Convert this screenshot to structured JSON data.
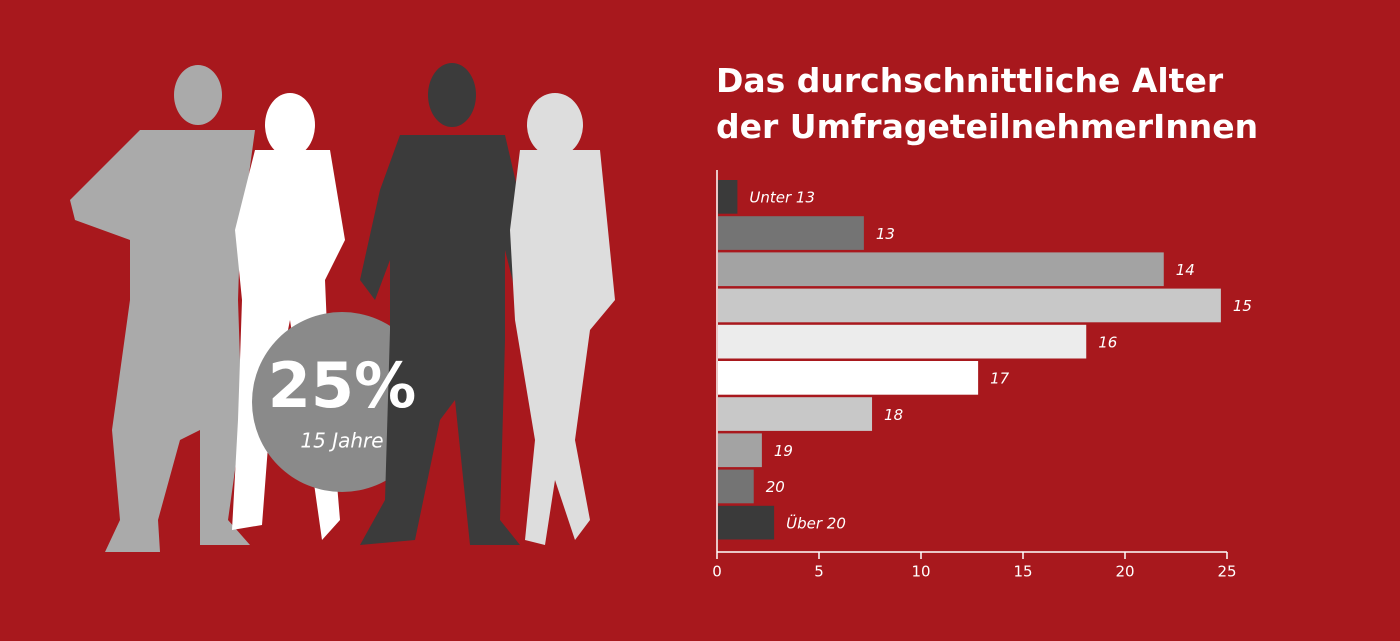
{
  "chart_data": {
    "type": "barh",
    "title": [
      "Das durchschnittliche Alter",
      "der UmfrageteilnehmerInnen"
    ],
    "annotation": {
      "text": "25%",
      "label": "15 Jahre"
    },
    "categories": [
      "Unter 13",
      "13",
      "14",
      "15",
      "16",
      "17",
      "18",
      "19",
      "20",
      "Über 20"
    ],
    "values": [
      1.0,
      7.2,
      21.9,
      24.7,
      18.1,
      12.8,
      7.6,
      2.2,
      1.8,
      2.8
    ],
    "colors": [
      "#3a3a3a",
      "#747474",
      "#a3a3a3",
      "#c8c8c8",
      "#ececec",
      "#ffffff",
      "#c8c8c8",
      "#a3a3a3",
      "#747474",
      "#3a3a3a"
    ],
    "xlim": [
      0,
      25
    ],
    "xticks": [
      0,
      5,
      10,
      15,
      20,
      25
    ]
  }
}
